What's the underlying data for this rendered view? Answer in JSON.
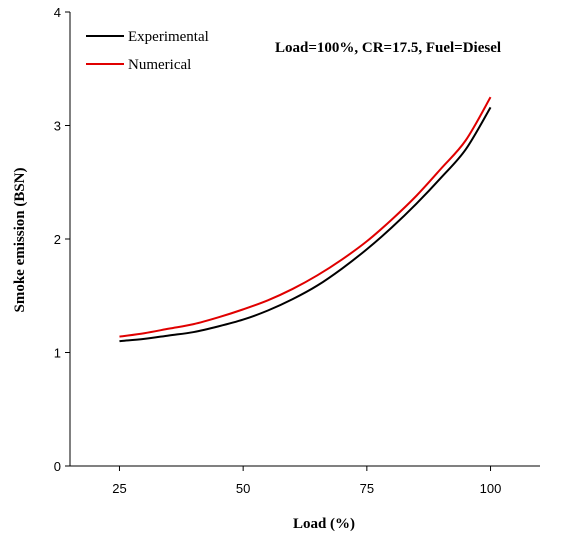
{
  "chart_data": {
    "type": "line",
    "title": "",
    "annotation": "Load=100%, CR=17.5, Fuel=Diesel",
    "xlabel": "Load (%)",
    "ylabel": "Smoke emission (BSN)",
    "xlim": [
      15,
      110
    ],
    "ylim": [
      0,
      4
    ],
    "xticks": [
      25,
      50,
      75,
      100
    ],
    "yticks": [
      0,
      1,
      2,
      3,
      4
    ],
    "grid": false,
    "legend_position": "top-left",
    "series": [
      {
        "name": "Experimental",
        "color": "#000000",
        "x": [
          25,
          30,
          35,
          40,
          45,
          50,
          55,
          60,
          65,
          70,
          75,
          80,
          85,
          90,
          95,
          100
        ],
        "y": [
          1.1,
          1.12,
          1.15,
          1.18,
          1.23,
          1.29,
          1.37,
          1.47,
          1.59,
          1.74,
          1.91,
          2.1,
          2.31,
          2.54,
          2.79,
          3.16
        ]
      },
      {
        "name": "Numerical",
        "color": "#e00000",
        "x": [
          25,
          30,
          35,
          40,
          45,
          50,
          55,
          60,
          65,
          70,
          75,
          80,
          85,
          90,
          95,
          100
        ],
        "y": [
          1.14,
          1.17,
          1.21,
          1.25,
          1.31,
          1.38,
          1.46,
          1.56,
          1.68,
          1.82,
          1.98,
          2.17,
          2.38,
          2.62,
          2.87,
          3.25
        ]
      }
    ]
  }
}
